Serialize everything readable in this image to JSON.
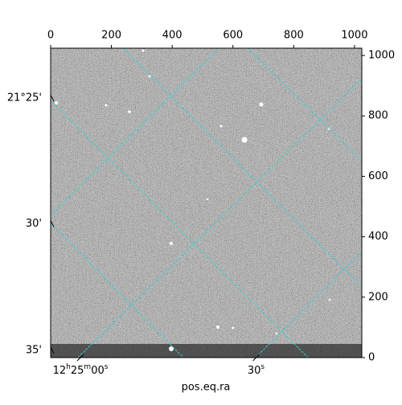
{
  "chart_data": {
    "type": "image",
    "xlabel": "pos.eq.ra",
    "xlim": [
      0,
      1024
    ],
    "ylim": [
      0,
      1024
    ],
    "xticks": [
      0,
      200,
      400,
      600,
      800,
      1000
    ],
    "yticks": [
      0,
      200,
      400,
      600,
      800,
      1000
    ],
    "world_x_ticks": [
      {
        "value": 98,
        "label": "12h25m00s"
      },
      {
        "value": 676,
        "label": "30s"
      }
    ],
    "world_y_ticks": [
      {
        "value": 859,
        "label": "21°25'"
      },
      {
        "value": 443,
        "label": "30'"
      },
      {
        "value": 24,
        "label": "35'"
      }
    ],
    "grid_color": "#40d0d0"
  }
}
